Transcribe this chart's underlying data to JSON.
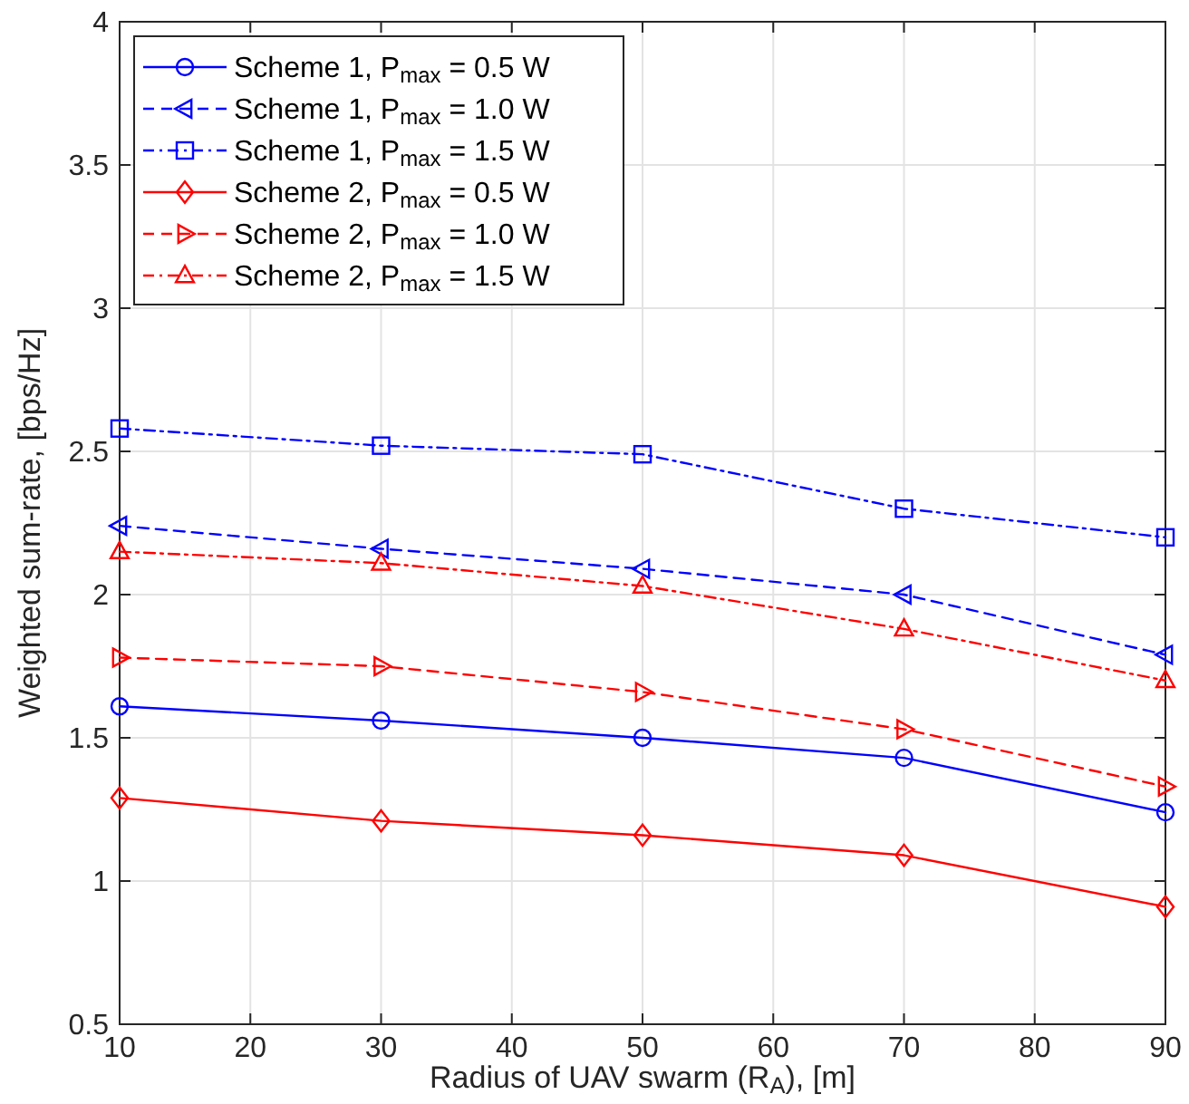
{
  "chart_data": {
    "type": "line",
    "xlabel": "Radius of UAV swarm (R$_{A}$), [m]",
    "ylabel": "Weighted sum-rate, [bps/Hz]",
    "x": [
      10,
      30,
      50,
      70,
      90
    ],
    "xlim": [
      10,
      90
    ],
    "xticks": [
      10,
      20,
      30,
      40,
      50,
      60,
      70,
      80,
      90
    ],
    "ylim": [
      0.5,
      4
    ],
    "yticks": [
      0.5,
      1,
      1.5,
      2,
      2.5,
      3,
      3.5,
      4
    ],
    "grid": true,
    "legend": "top left",
    "series": [
      {
        "name": "Scheme 1, P$_{max}$ = 0.5 W",
        "color": "#0000ff",
        "marker": "circle",
        "line_style": "solid",
        "values": [
          1.61,
          1.56,
          1.5,
          1.43,
          1.24
        ]
      },
      {
        "name": "Scheme 1, P$_{max}$ = 1.0 W",
        "color": "#0000ff",
        "marker": "triangle-left",
        "line_style": "dashed",
        "values": [
          2.24,
          2.16,
          2.09,
          2.0,
          1.79
        ]
      },
      {
        "name": "Scheme 1, P$_{max}$ = 1.5 W",
        "color": "#0000ff",
        "marker": "square",
        "line_style": "dashdot",
        "values": [
          2.58,
          2.52,
          2.49,
          2.3,
          2.2
        ]
      },
      {
        "name": "Scheme 2, P$_{max}$ = 0.5 W",
        "color": "#ff0000",
        "marker": "diamond",
        "line_style": "solid",
        "values": [
          1.29,
          1.21,
          1.16,
          1.09,
          0.91
        ]
      },
      {
        "name": "Scheme 2, P$_{max}$ = 1.0 W",
        "color": "#ff0000",
        "marker": "triangle-right",
        "line_style": "dashed",
        "values": [
          1.78,
          1.75,
          1.66,
          1.53,
          1.33
        ]
      },
      {
        "name": "Scheme 2, P$_{max}$ = 1.5 W",
        "color": "#ff0000",
        "marker": "triangle",
        "line_style": "dashdot",
        "values": [
          2.15,
          2.11,
          2.03,
          1.88,
          1.7
        ]
      }
    ]
  }
}
